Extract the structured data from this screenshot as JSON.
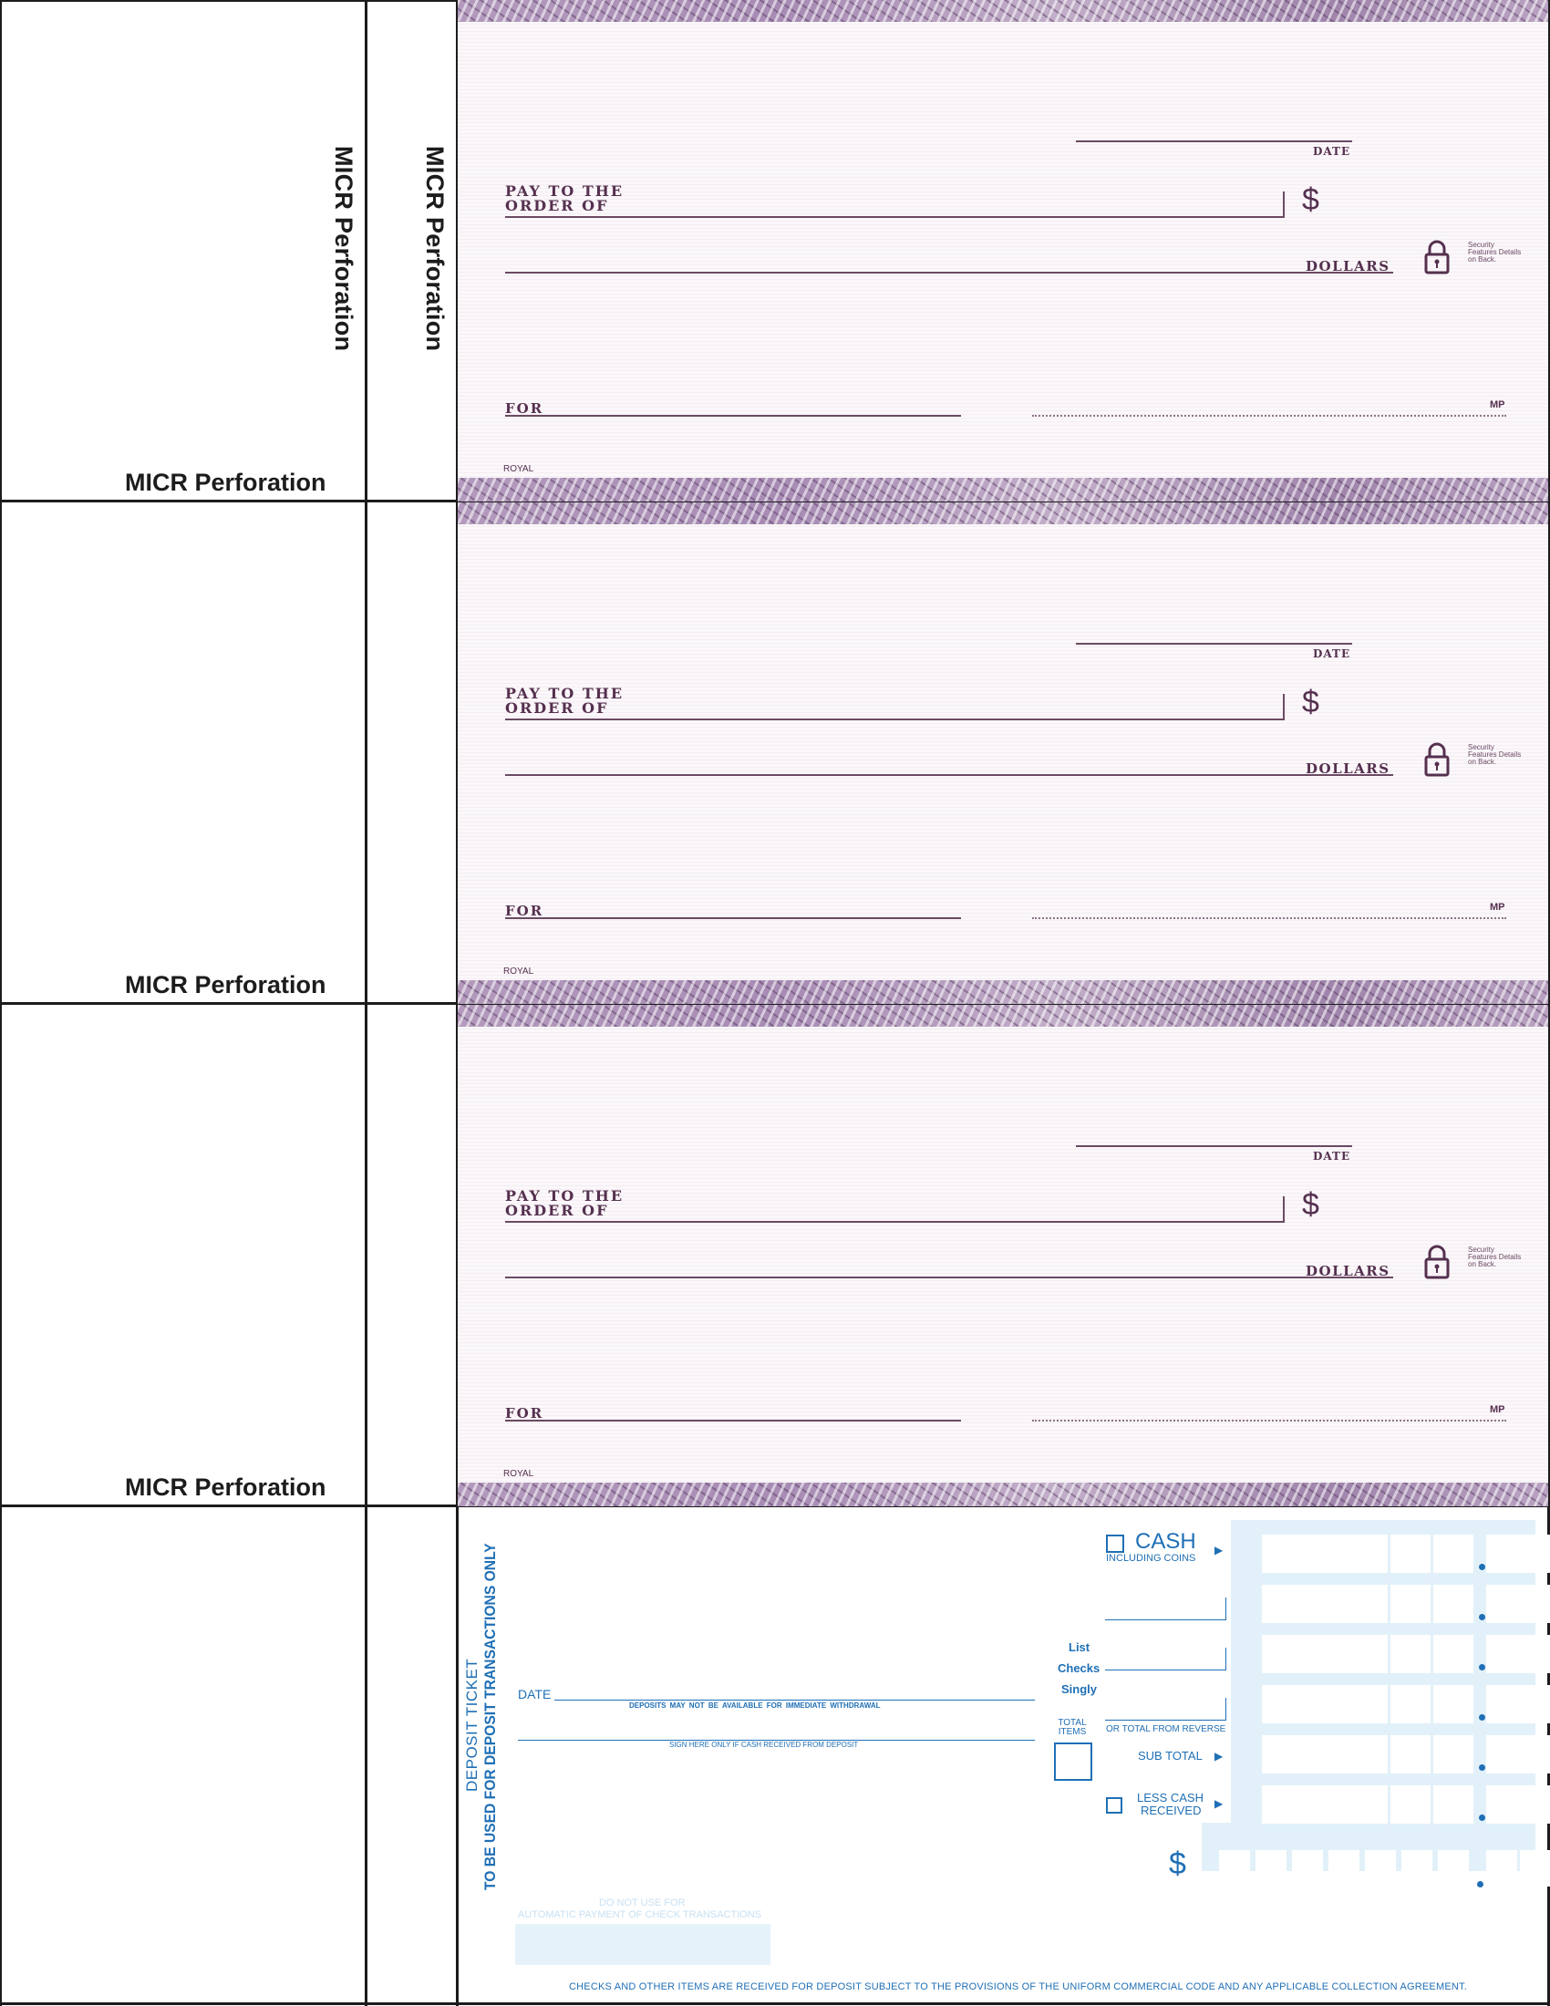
{
  "stub": {
    "micr_vertical_left": "MICR Perforation",
    "micr_vertical_right": "MICR Perforation",
    "micr_labels": [
      "MICR Perforation",
      "MICR Perforation",
      "MICR Perforation"
    ]
  },
  "checks": [
    {
      "date_label": "DATE",
      "pay_label_1": "PAY TO THE",
      "pay_label_2": "ORDER OF",
      "dollar_sign": "$",
      "dollars_label": "DOLLARS",
      "security_text": "Security Features Details on Back.",
      "for_label": "FOR",
      "mp_label": "MP",
      "royal_label": "ROYAL"
    },
    {
      "date_label": "DATE",
      "pay_label_1": "PAY TO THE",
      "pay_label_2": "ORDER OF",
      "dollar_sign": "$",
      "dollars_label": "DOLLARS",
      "security_text": "Security Features Details on Back.",
      "for_label": "FOR",
      "mp_label": "MP",
      "royal_label": "ROYAL"
    },
    {
      "date_label": "DATE",
      "pay_label_1": "PAY TO THE",
      "pay_label_2": "ORDER OF",
      "dollar_sign": "$",
      "dollars_label": "DOLLARS",
      "security_text": "Security Features Details on Back.",
      "for_label": "FOR",
      "mp_label": "MP",
      "royal_label": "ROYAL"
    }
  ],
  "deposit": {
    "title_small": "DEPOSIT TICKET",
    "title_large": "TO BE USED FOR DEPOSIT TRANSACTIONS ONLY",
    "date_label": "DATE",
    "deposits_note": "DEPOSITS MAY NOT BE AVAILABLE FOR IMMEDIATE WITHDRAWAL",
    "sign_note": "SIGN HERE ONLY IF CASH RECEIVED FROM DEPOSIT",
    "do_not_use": "DO NOT USE FOR",
    "automatic": "AUTOMATIC PAYMENT OF CHECK TRANSACTIONS",
    "cash_label": "CASH",
    "including_coins": "INCLUDING COINS",
    "list": "List",
    "checks": "Checks",
    "singly": "Singly",
    "total_items": "TOTAL ITEMS",
    "or_total": "OR TOTAL FROM REVERSE",
    "sub_total": "SUB TOTAL",
    "less_cash_1": "LESS CASH",
    "less_cash_2": "RECEIVED",
    "dollar": "$",
    "footer": "CHECKS AND OTHER ITEMS ARE RECEIVED FOR DEPOSIT SUBJECT TO THE PROVISIONS OF THE UNIFORM COMMERCIAL CODE AND ANY APPLICABLE COLLECTION AGREEMENT.",
    "accent": "#1f6fb5"
  }
}
